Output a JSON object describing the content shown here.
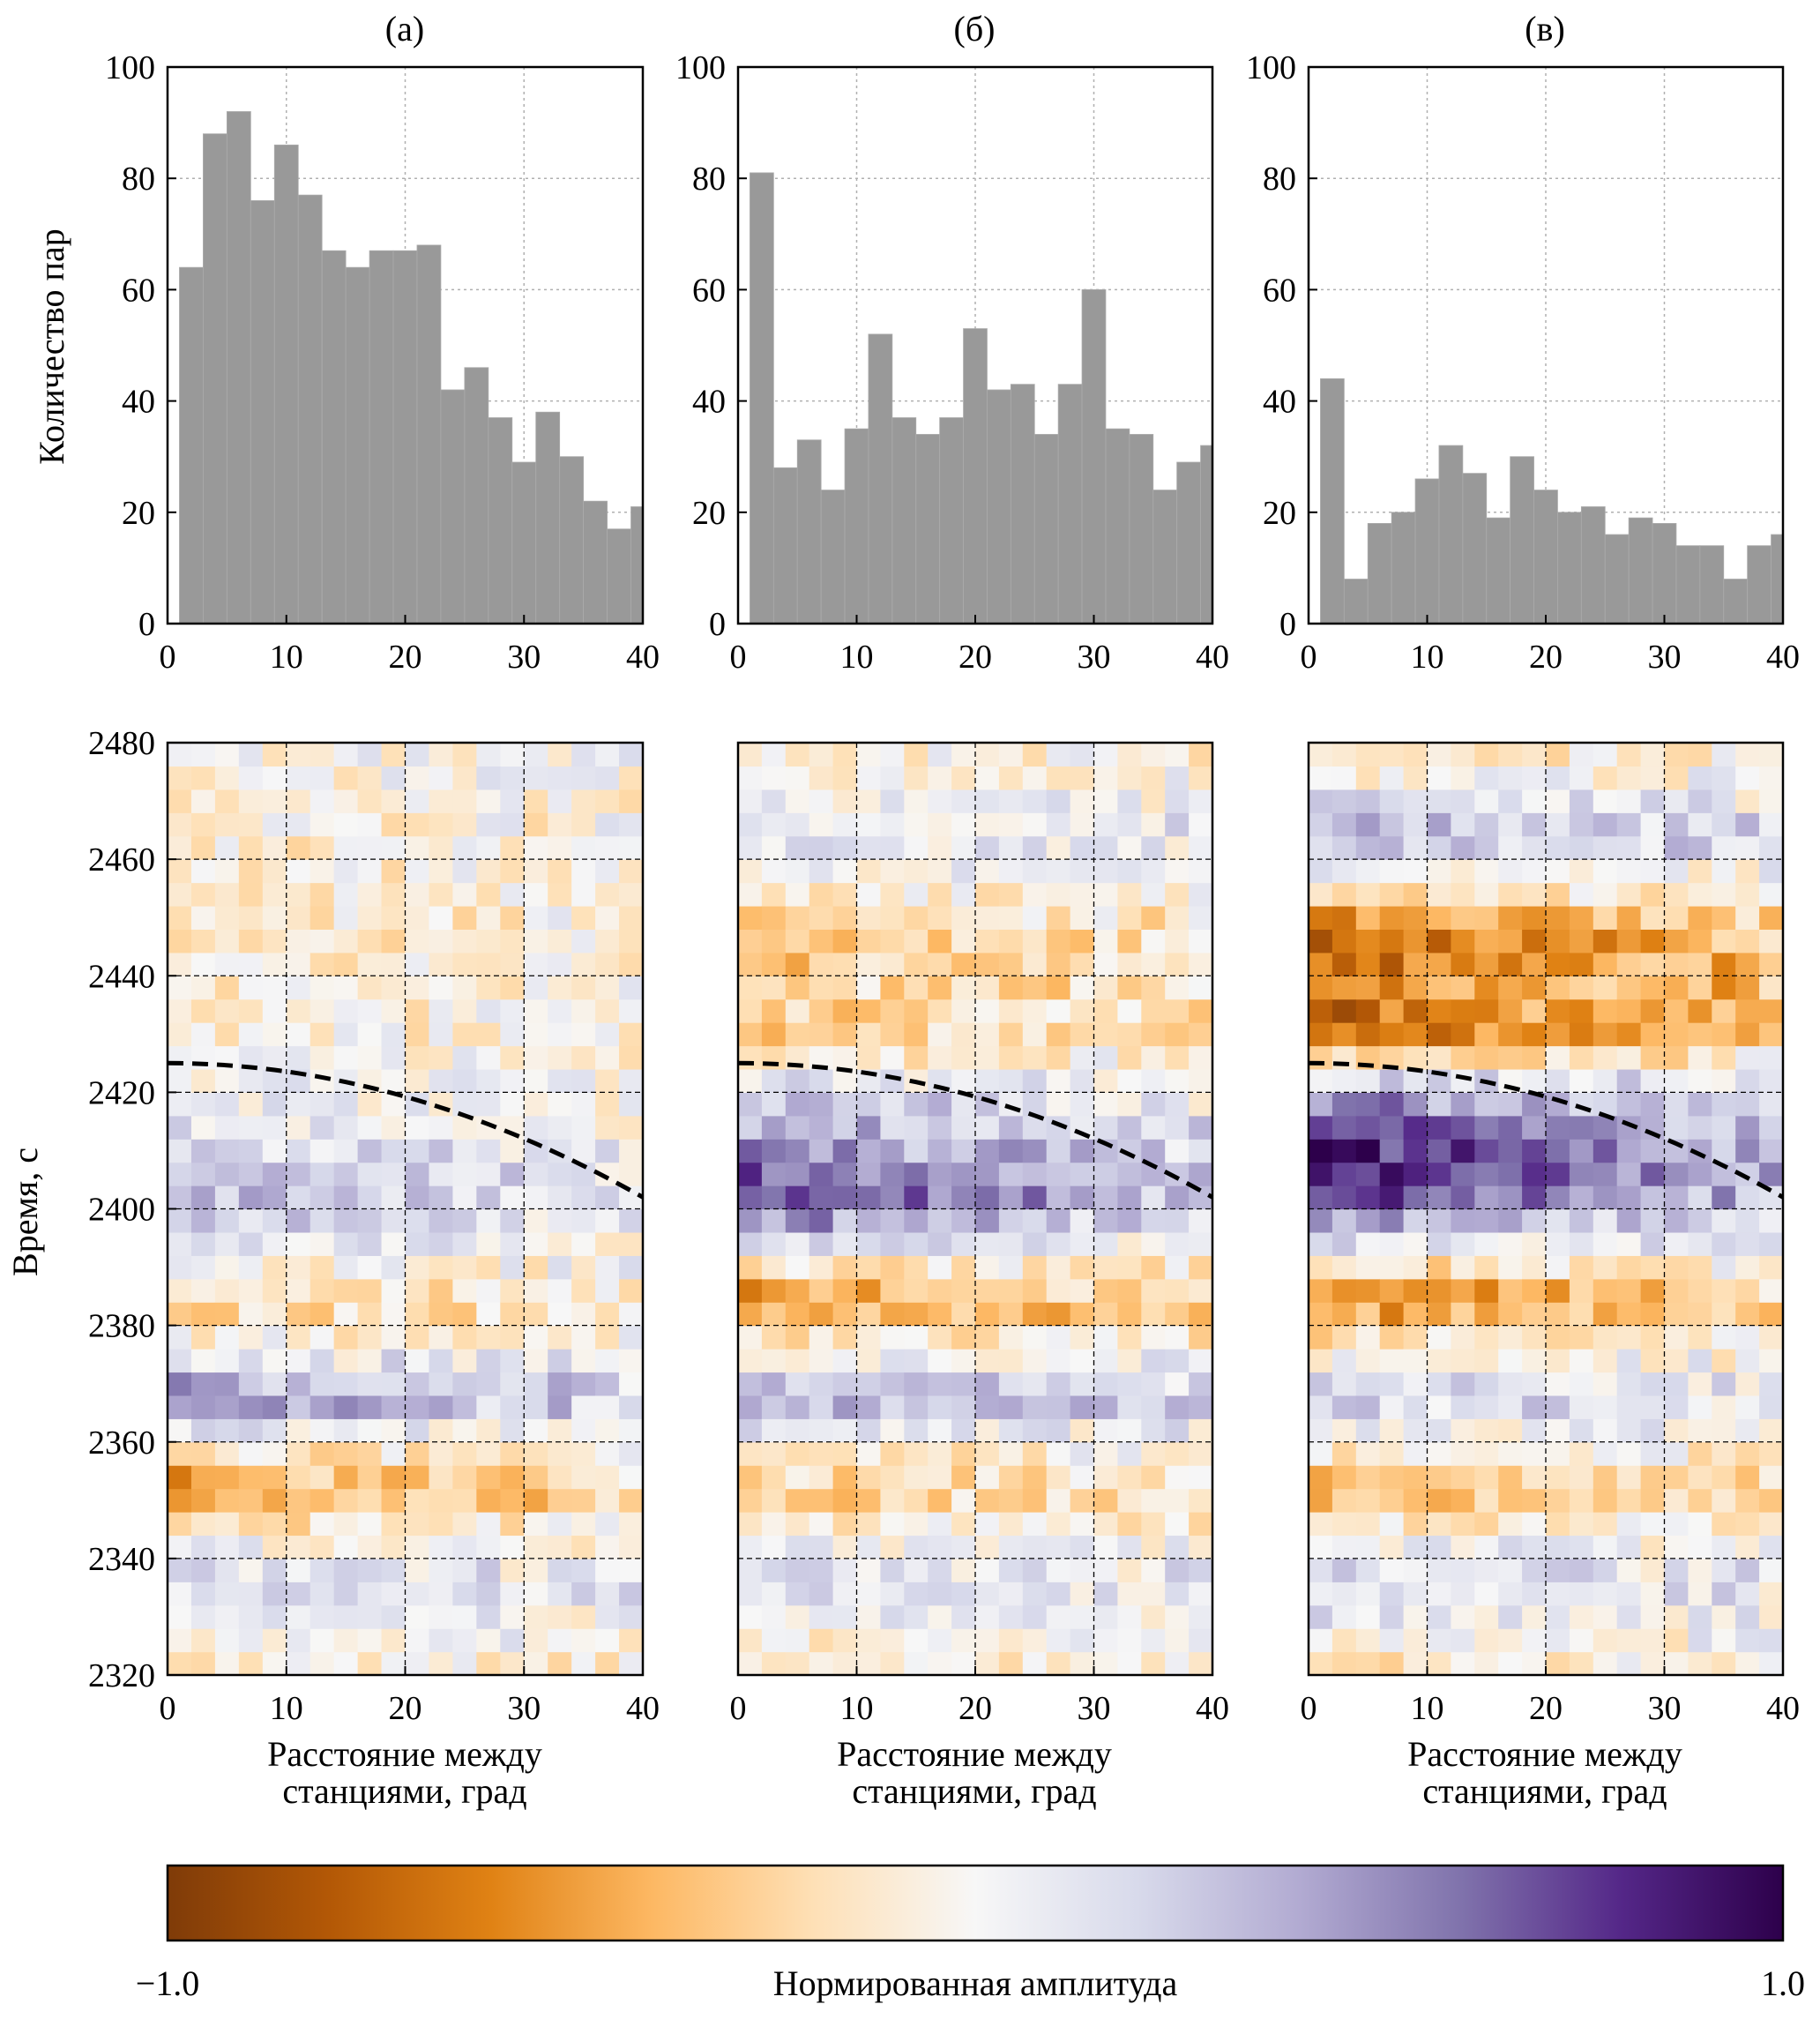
{
  "chart_data": [
    {
      "type": "bar",
      "panel": "top",
      "title": "(а)",
      "ylabel": "Количество пар",
      "xlabel": "",
      "xlim": [
        0,
        40
      ],
      "ylim": [
        0,
        100
      ],
      "xticks": [
        "0",
        "10",
        "20",
        "30",
        "40"
      ],
      "yticks": [
        "0",
        "20",
        "40",
        "60",
        "80",
        "100"
      ],
      "grid": true,
      "bin_edges_start": 1,
      "bin_width": 2,
      "values": [
        64,
        88,
        92,
        76,
        86,
        77,
        67,
        64,
        67,
        67,
        68,
        42,
        46,
        37,
        29,
        38,
        30,
        22,
        17,
        21
      ],
      "color": "#999999"
    },
    {
      "type": "bar",
      "panel": "top",
      "title": "(б)",
      "ylabel": "",
      "xlabel": "",
      "xlim": [
        0,
        40
      ],
      "ylim": [
        0,
        100
      ],
      "xticks": [
        "0",
        "10",
        "20",
        "30",
        "40"
      ],
      "yticks": [
        "0",
        "20",
        "40",
        "60",
        "80",
        "100"
      ],
      "grid": true,
      "bin_edges_start": 1,
      "bin_width": 2,
      "values": [
        81,
        28,
        33,
        24,
        35,
        52,
        37,
        34,
        37,
        53,
        42,
        43,
        34,
        43,
        60,
        35,
        34,
        24,
        29,
        32
      ],
      "color": "#999999"
    },
    {
      "type": "bar",
      "panel": "top",
      "title": "(в)",
      "ylabel": "",
      "xlabel": "",
      "xlim": [
        0,
        40
      ],
      "ylim": [
        0,
        100
      ],
      "xticks": [
        "0",
        "10",
        "20",
        "30",
        "40"
      ],
      "yticks": [
        "0",
        "20",
        "40",
        "60",
        "80",
        "100"
      ],
      "grid": true,
      "bin_edges_start": 1,
      "bin_width": 2,
      "values": [
        44,
        8,
        18,
        20,
        26,
        32,
        27,
        19,
        30,
        24,
        20,
        21,
        16,
        19,
        18,
        14,
        14,
        8,
        14,
        16
      ],
      "color": "#999999"
    },
    {
      "type": "heatmap",
      "panel": "bottom",
      "ylabel": "Время, с",
      "xlabel": [
        "Расстояние между",
        "станциями, град"
      ],
      "xlim": [
        0,
        40
      ],
      "ylim": [
        2320,
        2480
      ],
      "xticks": [
        "0",
        "10",
        "20",
        "30",
        "40"
      ],
      "yticks": [
        "2320",
        "2340",
        "2360",
        "2380",
        "2400",
        "2420",
        "2440",
        "2460",
        "2480"
      ],
      "grid": true,
      "columns": 20,
      "band_sign": [
        0.3,
        -0.5,
        0.8,
        -0.7,
        0.6,
        -0.8,
        -0.3,
        0.3,
        0.4,
        0.3,
        0.1
      ],
      "band_strength": [
        0.4,
        0.5,
        0.9,
        0.9,
        0.5,
        0.5,
        0.35,
        0.4,
        0.4,
        0.3,
        0.3
      ],
      "dashed_curve": {
        "t0": 2425,
        "x_end": 40,
        "t_end": 2402
      }
    },
    {
      "type": "heatmap",
      "panel": "bottom",
      "ylabel": "",
      "xlabel": [
        "Расстояние между",
        "станциями, град"
      ],
      "xlim": [
        0,
        40
      ],
      "ylim": [
        2320,
        2480
      ],
      "xticks": [
        "0",
        "10",
        "20",
        "30",
        "40"
      ],
      "yticks": [],
      "grid": true,
      "columns": 20,
      "band_sign": [
        0.5,
        -0.5,
        0.6,
        -0.6,
        0.9,
        -0.9,
        -0.6,
        0.6,
        0.6,
        -0.4,
        0.3
      ],
      "band_strength": [
        0.5,
        0.45,
        0.75,
        0.9,
        0.7,
        0.9,
        0.75,
        0.65,
        0.55,
        0.45,
        0.4
      ],
      "dashed_curve": {
        "t0": 2425,
        "x_end": 40,
        "t_end": 2402
      }
    },
    {
      "type": "heatmap",
      "panel": "bottom",
      "ylabel": "",
      "xlabel": [
        "Расстояние между",
        "станциями, град"
      ],
      "xlim": [
        0,
        40
      ],
      "ylim": [
        2320,
        2480
      ],
      "xticks": [
        "0",
        "10",
        "20",
        "30",
        "40"
      ],
      "yticks": [],
      "grid": true,
      "columns": 20,
      "band_sign": [
        0.4,
        -0.6,
        0.7,
        -0.5,
        0.9,
        -0.9,
        -1.0,
        1.0,
        0.9,
        -0.7,
        0.5
      ],
      "band_strength": [
        0.5,
        0.5,
        0.8,
        0.6,
        0.9,
        0.95,
        0.95,
        0.9,
        0.85,
        0.7,
        0.55
      ],
      "dashed_curve": {
        "t0": 2425,
        "x_end": 40,
        "t_end": 2402
      }
    }
  ],
  "colorbar": {
    "label": "Нормированная амплитуда",
    "min_label": "−1.0",
    "max_label": "1.0",
    "range": [
      -1.0,
      1.0
    ],
    "stops": [
      "#7f3b08",
      "#b35806",
      "#e08214",
      "#fdb863",
      "#fee0b6",
      "#f7f7f7",
      "#d8daeb",
      "#b2abd2",
      "#8073ac",
      "#542788",
      "#2d004b"
    ]
  }
}
